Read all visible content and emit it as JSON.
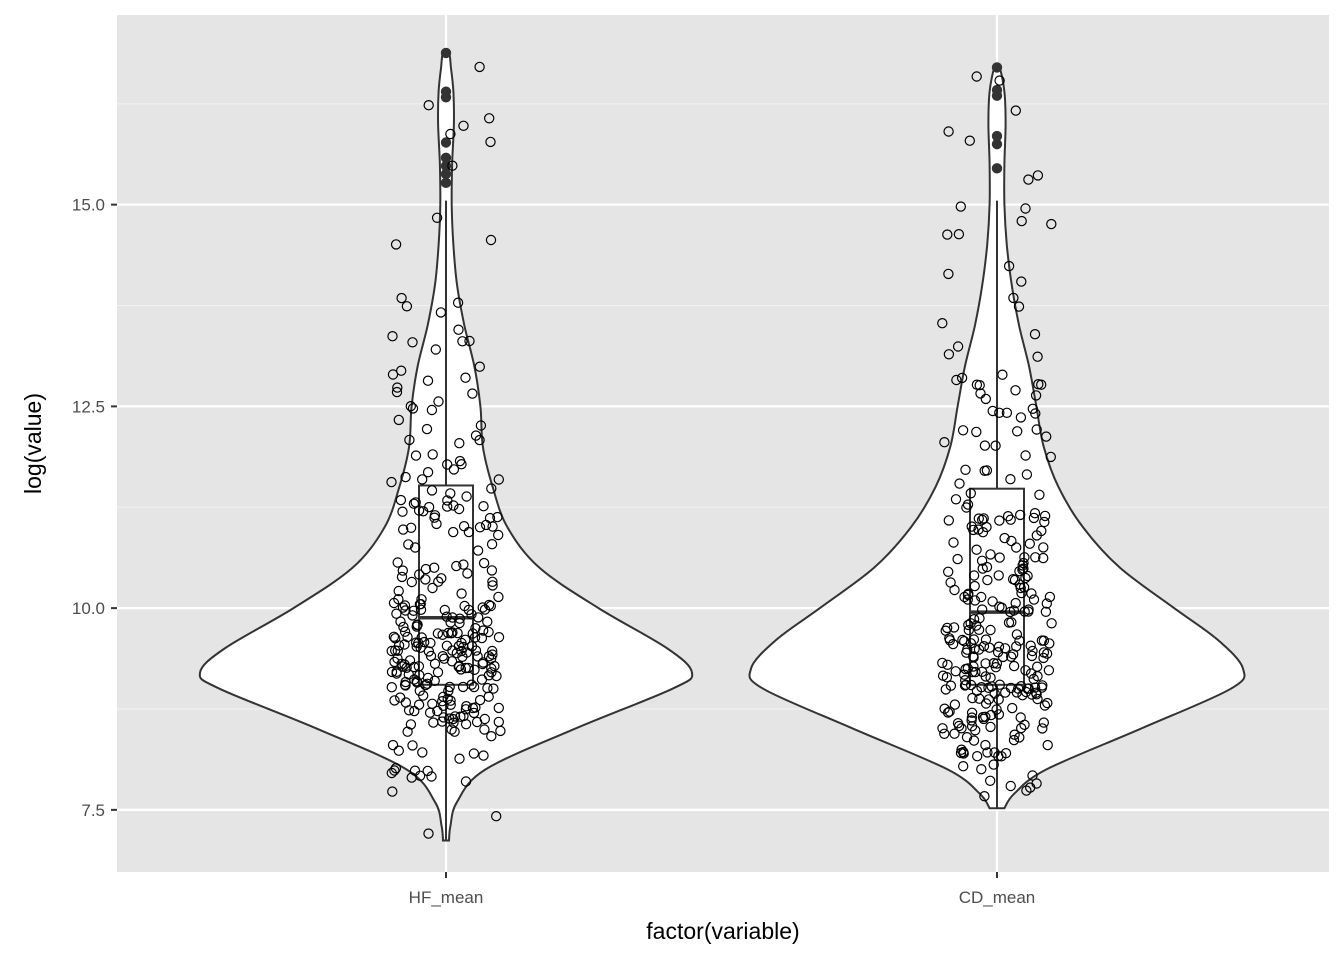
{
  "chart_data": {
    "type": "violin",
    "overlays": [
      "boxplot",
      "jitter"
    ],
    "xlabel": "factor(variable)",
    "ylabel": "log(value)",
    "ylim": [
      6.73,
      17.35
    ],
    "yticks": [
      7.5,
      10.0,
      12.5,
      15.0
    ],
    "ytick_labels": [
      "7.5",
      "10.0",
      "12.5",
      "15.0"
    ],
    "grid": true,
    "categories": [
      "HF_mean",
      "CD_mean"
    ],
    "colors": {
      "panel_bg": "#e5e5e5",
      "grid_major": "#ffffff",
      "grid_minor": "#f2f2f2",
      "violin_fill": "#ffffff",
      "outline": "#333333",
      "tick_text": "#4d4d4d",
      "title_text": "#000000"
    },
    "series": [
      {
        "category": "HF_mean",
        "violin_range": [
          7.12,
          16.88
        ],
        "violin_profile": [
          [
            7.12,
            0.012
          ],
          [
            7.3,
            0.018
          ],
          [
            7.6,
            0.045
          ],
          [
            8.0,
            0.16
          ],
          [
            8.5,
            0.52
          ],
          [
            9.0,
            0.92
          ],
          [
            9.2,
            1.0
          ],
          [
            9.5,
            0.9
          ],
          [
            10.0,
            0.62
          ],
          [
            10.5,
            0.38
          ],
          [
            11.0,
            0.25
          ],
          [
            11.5,
            0.19
          ],
          [
            12.0,
            0.15
          ],
          [
            12.5,
            0.14
          ],
          [
            13.0,
            0.115
          ],
          [
            13.5,
            0.075
          ],
          [
            14.0,
            0.045
          ],
          [
            14.5,
            0.03
          ],
          [
            15.0,
            0.023
          ],
          [
            15.5,
            0.025
          ],
          [
            16.0,
            0.032
          ],
          [
            16.4,
            0.03
          ],
          [
            16.7,
            0.02
          ],
          [
            16.88,
            0.012
          ]
        ],
        "box": {
          "q1": 9.05,
          "median": 9.88,
          "q3": 11.52,
          "whisker_low": 7.12,
          "whisker_high": 15.05
        },
        "outliers": [
          15.27,
          15.38,
          15.48,
          15.58,
          15.77,
          16.33,
          16.4,
          16.88
        ]
      },
      {
        "category": "CD_mean",
        "violin_range": [
          7.52,
          16.7
        ],
        "violin_profile": [
          [
            7.52,
            0.03
          ],
          [
            7.7,
            0.07
          ],
          [
            8.0,
            0.2
          ],
          [
            8.5,
            0.58
          ],
          [
            9.0,
            0.95
          ],
          [
            9.25,
            1.0
          ],
          [
            9.6,
            0.9
          ],
          [
            10.0,
            0.72
          ],
          [
            10.5,
            0.5
          ],
          [
            11.0,
            0.35
          ],
          [
            11.5,
            0.25
          ],
          [
            12.0,
            0.19
          ],
          [
            12.5,
            0.16
          ],
          [
            13.0,
            0.13
          ],
          [
            13.5,
            0.09
          ],
          [
            14.0,
            0.06
          ],
          [
            14.5,
            0.04
          ],
          [
            15.0,
            0.03
          ],
          [
            15.5,
            0.03
          ],
          [
            16.0,
            0.035
          ],
          [
            16.4,
            0.03
          ],
          [
            16.7,
            0.01
          ]
        ],
        "box": {
          "q1": 9.05,
          "median": 9.95,
          "q3": 11.48,
          "whisker_low": 7.52,
          "whisker_high": 15.05
        },
        "outliers": [
          15.45,
          15.75,
          15.85,
          16.35,
          16.42,
          16.7
        ]
      }
    ],
    "jitter_points_per_group": 300
  }
}
